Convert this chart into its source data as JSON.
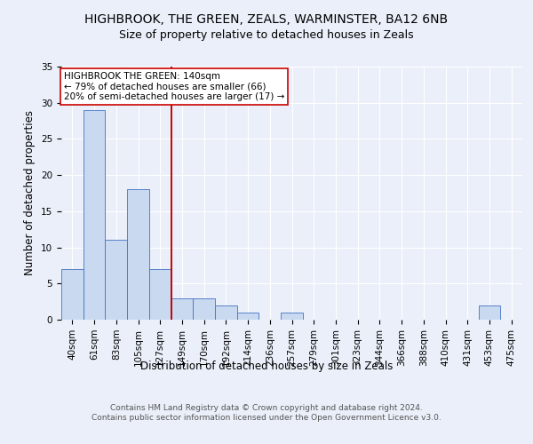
{
  "title": "HIGHBROOK, THE GREEN, ZEALS, WARMINSTER, BA12 6NB",
  "subtitle": "Size of property relative to detached houses in Zeals",
  "xlabel": "Distribution of detached houses by size in Zeals",
  "ylabel": "Number of detached properties",
  "categories": [
    "40sqm",
    "61sqm",
    "83sqm",
    "105sqm",
    "127sqm",
    "149sqm",
    "170sqm",
    "192sqm",
    "214sqm",
    "236sqm",
    "257sqm",
    "279sqm",
    "301sqm",
    "323sqm",
    "344sqm",
    "366sqm",
    "388sqm",
    "410sqm",
    "431sqm",
    "453sqm",
    "475sqm"
  ],
  "values": [
    7,
    29,
    11,
    18,
    7,
    3,
    3,
    2,
    1,
    0,
    1,
    0,
    0,
    0,
    0,
    0,
    0,
    0,
    0,
    2,
    0
  ],
  "bar_color": "#c9d9f0",
  "bar_edge_color": "#4472c4",
  "vline_x_index": 4.5,
  "vline_color": "#cc0000",
  "annotation_text": "HIGHBROOK THE GREEN: 140sqm\n← 79% of detached houses are smaller (66)\n20% of semi-detached houses are larger (17) →",
  "annotation_box_color": "white",
  "annotation_box_edge_color": "#cc0000",
  "ylim": [
    0,
    35
  ],
  "yticks": [
    0,
    5,
    10,
    15,
    20,
    25,
    30,
    35
  ],
  "footer_text": "Contains HM Land Registry data © Crown copyright and database right 2024.\nContains public sector information licensed under the Open Government Licence v3.0.",
  "title_fontsize": 10,
  "subtitle_fontsize": 9,
  "axis_label_fontsize": 8.5,
  "tick_fontsize": 7.5,
  "annotation_fontsize": 7.5,
  "footer_fontsize": 6.5,
  "bg_color": "#eaeff9",
  "plot_bg_color": "#eaeff9"
}
